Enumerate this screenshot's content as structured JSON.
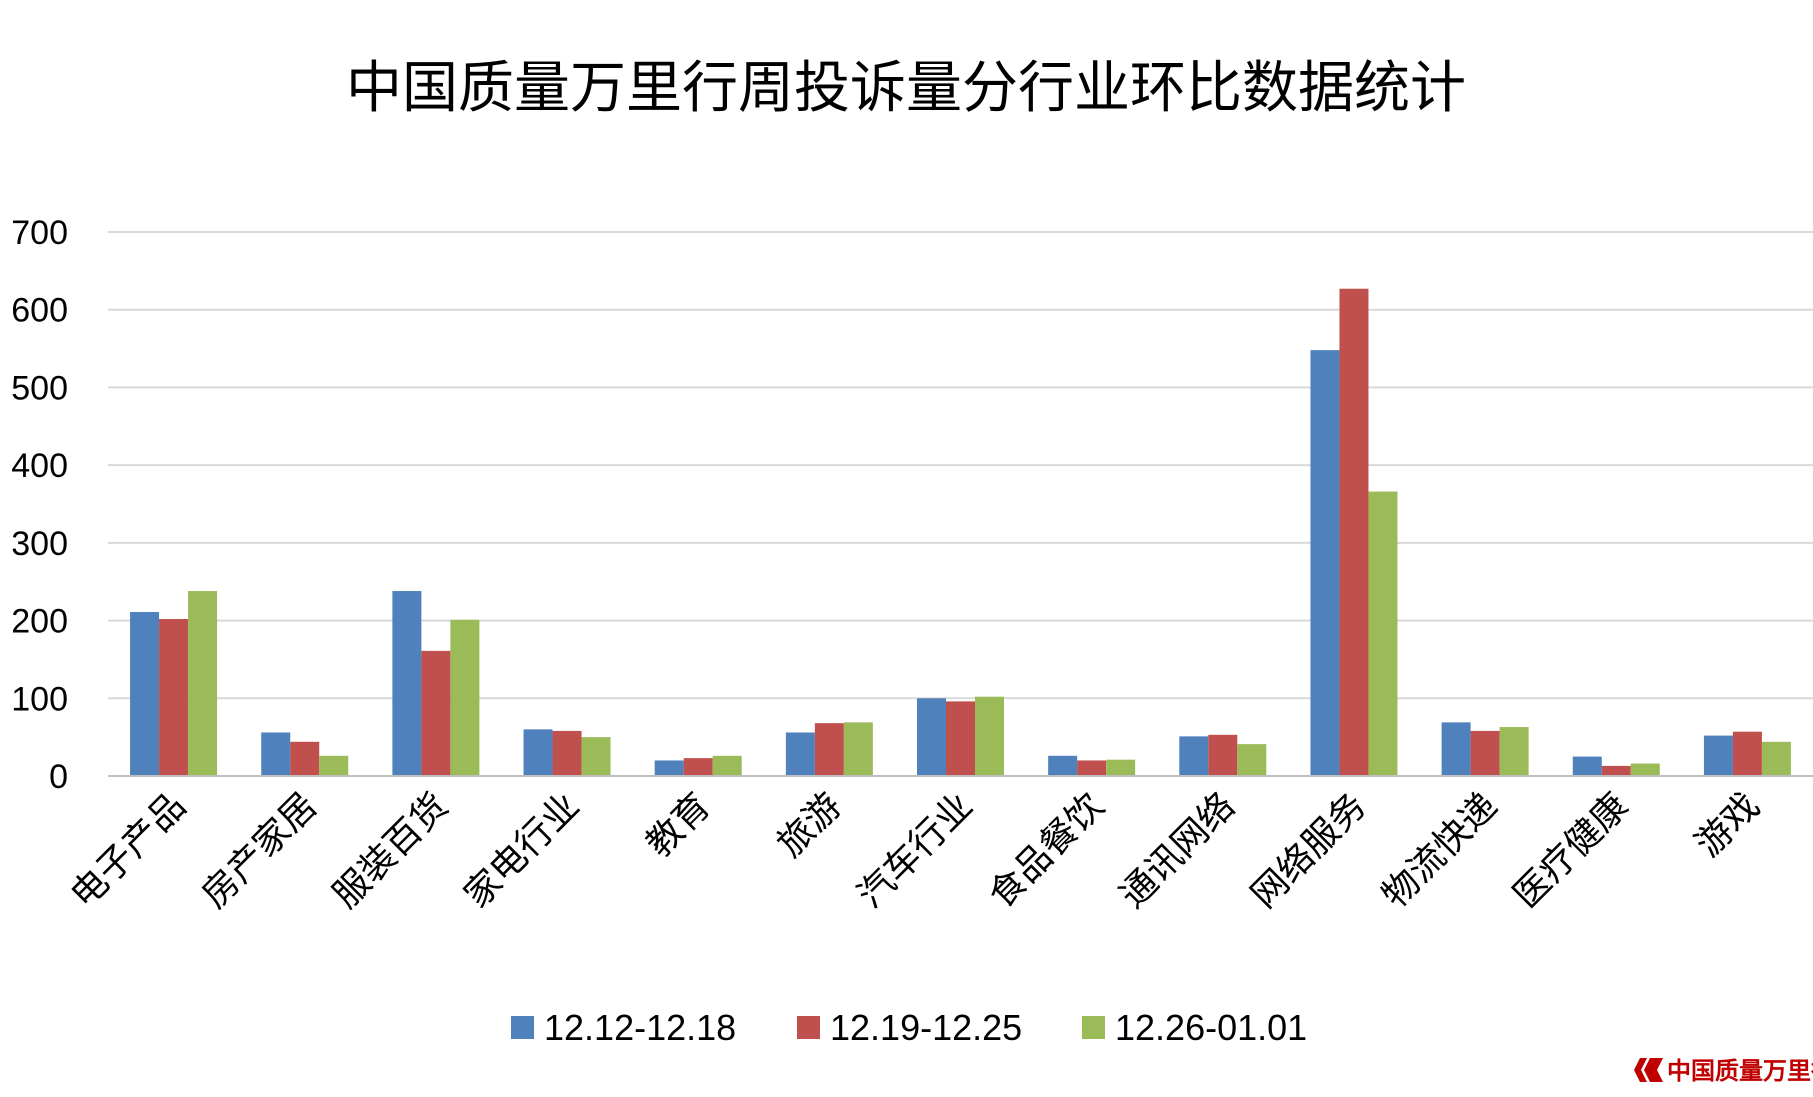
{
  "chart_data": {
    "type": "bar",
    "title": "中国质量万里行周投诉量分行业环比数据统计",
    "xlabel": "",
    "ylabel": "",
    "ylim": [
      0,
      700
    ],
    "yticks": [
      "0",
      "100",
      "200",
      "300",
      "400",
      "500",
      "600",
      "700"
    ],
    "grid": true,
    "legend_position": "bottom",
    "categories": [
      "电子产品",
      "房产家居",
      "服装百货",
      "家电行业",
      "教育",
      "旅游",
      "汽车行业",
      "食品餐饮",
      "通讯网络",
      "网络服务",
      "物流快递",
      "医疗健康",
      "游戏"
    ],
    "series": [
      {
        "name": "12.12-12.18",
        "color": "#4f81bd",
        "values": [
          211,
          56,
          238,
          60,
          20,
          56,
          100,
          26,
          51,
          548,
          69,
          25,
          52
        ]
      },
      {
        "name": "12.19-12.25",
        "color": "#c0504d",
        "values": [
          202,
          44,
          161,
          58,
          23,
          68,
          96,
          20,
          53,
          627,
          58,
          13,
          57
        ]
      },
      {
        "name": "12.26-01.01",
        "color": "#9bbb59",
        "values": [
          238,
          26,
          201,
          50,
          26,
          69,
          102,
          21,
          41,
          366,
          63,
          16,
          44
        ]
      }
    ]
  },
  "watermark": {
    "text": "中国质量万里行",
    "icon": "brand-chevron-icon",
    "color": "#c00000"
  },
  "style": {
    "gridline_color": "#d9d9d9",
    "axis_color": "#bfbfbf"
  }
}
